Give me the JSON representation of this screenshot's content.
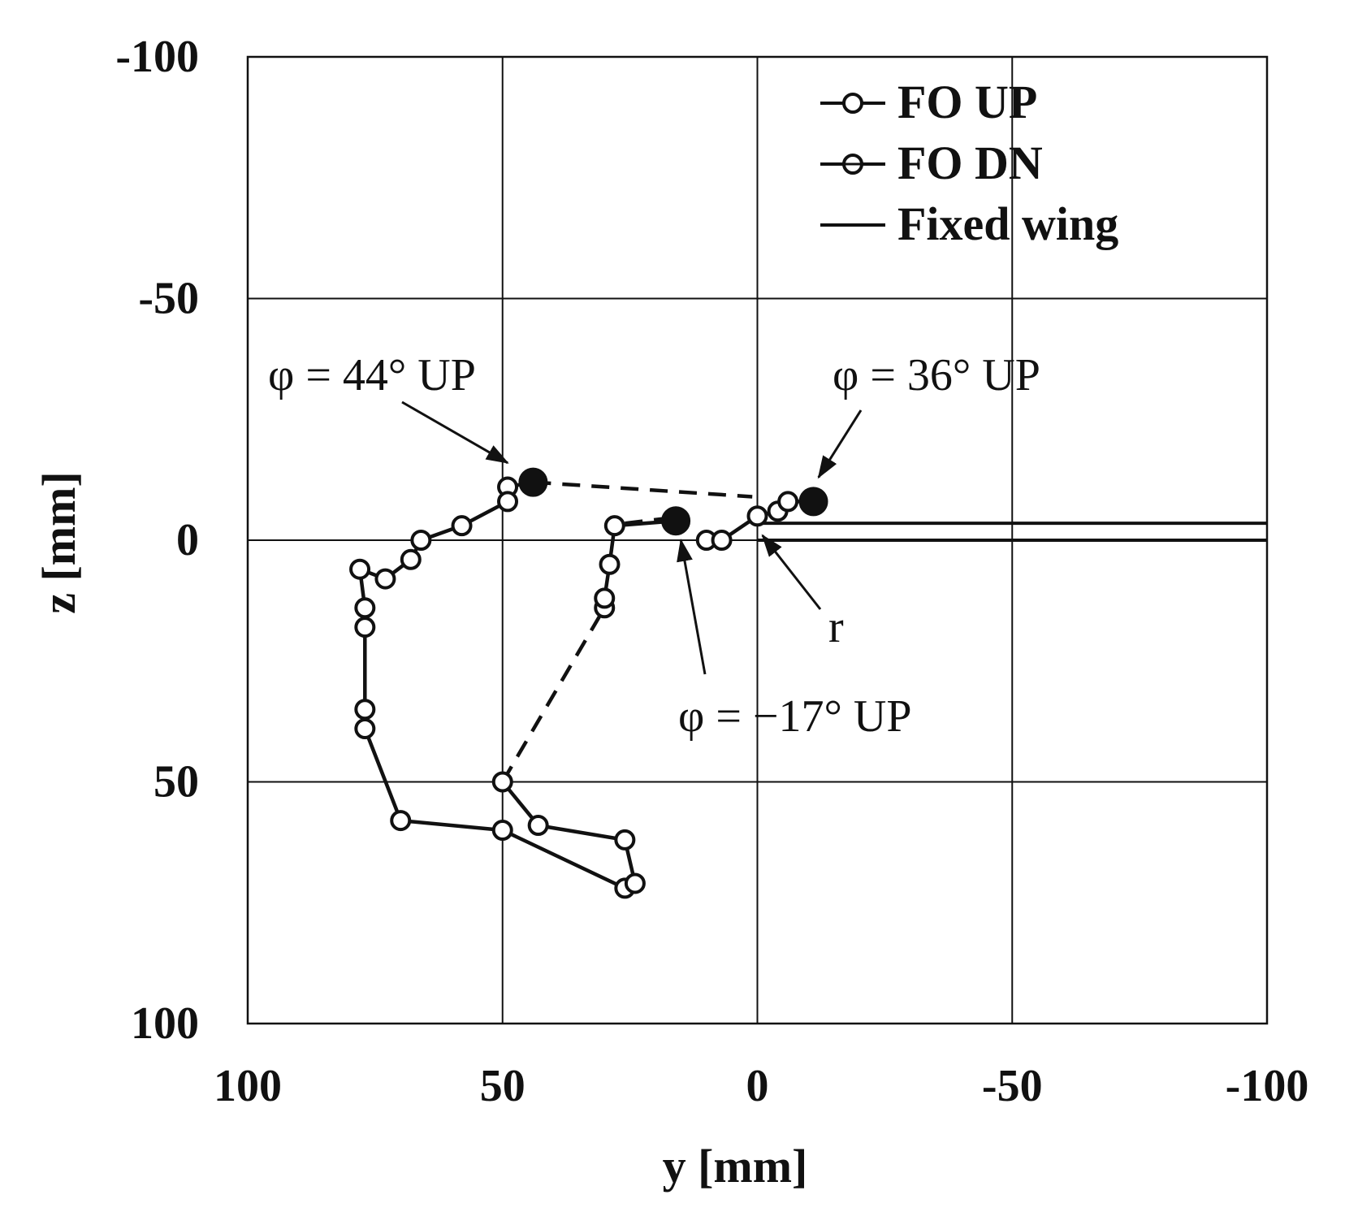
{
  "chart_data": {
    "type": "scatter",
    "title": "",
    "xlabel": "y [mm]",
    "ylabel": "z [mm]",
    "x_axis_reversed": true,
    "y_axis_reversed": true,
    "xlim": [
      100,
      -100
    ],
    "ylim": [
      -100,
      100
    ],
    "xticks": [
      100,
      50,
      0,
      -50,
      -100
    ],
    "yticks": [
      -100,
      -50,
      0,
      50,
      100
    ],
    "xtick_labels": [
      "100",
      "50",
      "0",
      "-50",
      "-100"
    ],
    "ytick_labels": [
      "-100",
      "-50",
      "0",
      "50",
      "100"
    ],
    "grid": true,
    "legend_position": "top-right",
    "legend": [
      {
        "label": "FO UP",
        "style": "line-open-circle"
      },
      {
        "label": "FO DN",
        "style": "line-open-circle-bar"
      },
      {
        "label": "Fixed wing",
        "style": "line"
      }
    ],
    "series": [
      {
        "name": "FO UP",
        "marker": "open-circle",
        "points": [
          [
            44,
            -12
          ],
          [
            49,
            -11
          ],
          [
            49,
            -8
          ],
          [
            58,
            -3
          ],
          [
            66,
            0
          ],
          [
            68,
            4
          ],
          [
            73,
            8
          ],
          [
            78,
            6
          ],
          [
            77,
            14
          ],
          [
            77,
            18
          ],
          [
            77,
            35
          ],
          [
            77,
            39
          ],
          [
            70,
            58
          ],
          [
            50,
            60
          ],
          [
            26,
            72
          ],
          [
            24,
            71
          ],
          [
            26,
            62
          ],
          [
            43,
            59
          ],
          [
            50,
            50
          ],
          [
            30,
            14
          ],
          [
            30,
            12
          ],
          [
            29,
            5
          ],
          [
            28,
            -3
          ],
          [
            16,
            -4
          ],
          [
            10,
            0
          ],
          [
            7,
            0
          ],
          [
            0,
            -5
          ],
          [
            -4,
            -6
          ],
          [
            -6,
            -8
          ],
          [
            -11,
            -8
          ]
        ]
      },
      {
        "name": "Fixed wing",
        "segments": [
          [
            [
              0,
              -3.5
            ],
            [
              -100,
              -3.5
            ]
          ],
          [
            [
              0,
              0
            ],
            [
              -100,
              0
            ]
          ]
        ]
      }
    ],
    "dashed_segments": [
      [
        [
          44,
          -12
        ],
        [
          1,
          -9
        ]
      ],
      [
        [
          50,
          50
        ],
        [
          30,
          14
        ]
      ],
      [
        [
          26,
          -3.5
        ],
        [
          18,
          -4.5
        ]
      ]
    ],
    "highlighted_points": [
      {
        "label": "φ = 44°  UP",
        "x": 44,
        "y": -12
      },
      {
        "label": "φ = 36°  UP",
        "x": -11,
        "y": -8
      },
      {
        "label": "φ = −17°  UP",
        "x": 16,
        "y": -4
      }
    ],
    "annotations": [
      {
        "text": "φ = 44°  UP",
        "points_to": [
          49,
          -16
        ]
      },
      {
        "text": "φ = 36°  UP",
        "points_to": [
          -12,
          -13
        ]
      },
      {
        "text": "φ = −17°  UP",
        "points_to": [
          15,
          0
        ]
      },
      {
        "text": "r",
        "points_to": [
          -1,
          -1
        ]
      }
    ]
  }
}
